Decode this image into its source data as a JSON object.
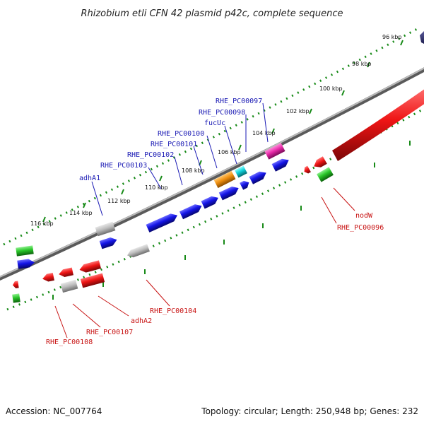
{
  "title": "Rhizobium etli CFN 42 plasmid p42c, complete sequence",
  "footer": {
    "accession": "Accession: NC_007764",
    "summary": "Topology: circular; Length: 250,948 bp; Genes: 232"
  },
  "colors": {
    "upper_label": "#1a1ab4",
    "lower_label": "#c81414",
    "backbone": "#8c8c8c",
    "tick": "#178a17"
  },
  "ticks": [
    "96 kbp",
    "98 kbp",
    "100 kbp",
    "102 kbp",
    "104 kbp",
    "106 kbp",
    "108 kbp",
    "110 kbp",
    "112 kbp",
    "114 kbp",
    "116 kbp"
  ],
  "upper_labels": [
    "RHE_PC00097",
    "RHE_PC00098",
    "fucUc",
    "RHE_PC00100",
    "RHE_PC00101",
    "RHE_PC00102",
    "RHE_PC00103",
    "adhA1"
  ],
  "lower_labels": [
    "nodW",
    "RHE_PC00096",
    "RHE_PC00104",
    "adhA2",
    "RHE_PC00107",
    "RHE_PC00108"
  ],
  "features": [
    {
      "color": "blue"
    },
    {
      "color": "magenta"
    },
    {
      "color": "blue"
    },
    {
      "color": "blue"
    },
    {
      "color": "cyan"
    },
    {
      "color": "orange"
    },
    {
      "color": "blue"
    },
    {
      "color": "blue"
    },
    {
      "color": "blue"
    },
    {
      "color": "blue"
    },
    {
      "color": "grey"
    },
    {
      "color": "blue"
    },
    {
      "color": "green"
    },
    {
      "color": "blue"
    },
    {
      "color": "red"
    },
    {
      "color": "red"
    },
    {
      "color": "green"
    },
    {
      "color": "red"
    },
    {
      "color": "red"
    },
    {
      "color": "grey"
    },
    {
      "color": "red"
    },
    {
      "color": "grey"
    },
    {
      "color": "red"
    },
    {
      "color": "red"
    },
    {
      "color": "green"
    }
  ]
}
